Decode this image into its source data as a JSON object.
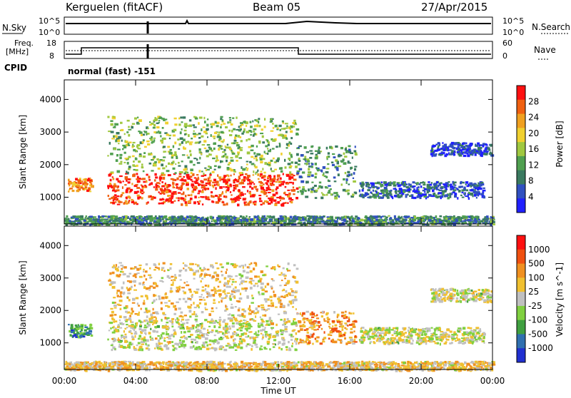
{
  "header": {
    "station": "Kerguelen (fitACF)",
    "beam": "Beam 05",
    "date": "27/Apr/2015"
  },
  "top_panels": {
    "nsky_label": "N.Sky",
    "nsky_ticks": [
      "10^5",
      "10^0"
    ],
    "nsearch_label": "N.Search",
    "nsearch_ticks": [
      "10^5",
      "10^0"
    ],
    "freq_label_1": "Freq.",
    "freq_label_2": "[MHz]",
    "freq_ticks": [
      "18",
      "8"
    ],
    "nave_label": "Nave",
    "nave_ticks": [
      "60",
      "0"
    ],
    "cpid_label": "CPID",
    "cpid_value": "normal (fast) -151"
  },
  "chart_data": [
    {
      "type": "heatmap",
      "name": "power",
      "xlabel": "",
      "ylabel": "Slant Range [km]",
      "x_ticks": [
        "00:00",
        "04:00",
        "08:00",
        "12:00",
        "16:00",
        "20:00",
        "00:00"
      ],
      "x_range_hours": [
        0,
        24
      ],
      "y_ticks": [
        1000,
        2000,
        3000,
        4000
      ],
      "ylim": [
        180,
        4600
      ],
      "colorbar_label": "Power [dB]",
      "colorbar_ticks": [
        "28",
        "24",
        "20",
        "16",
        "12",
        "8",
        "4"
      ],
      "colorbar_colors": [
        "#2020ff",
        "#3050c0",
        "#3a7a60",
        "#50a050",
        "#a0c840",
        "#f0d030",
        "#f0a020",
        "#f06010",
        "#ff1010"
      ],
      "regions": [
        {
          "t0": 0.2,
          "t1": 1.5,
          "r0": 1200,
          "r1": 1600,
          "level": 0.75
        },
        {
          "t0": 2.4,
          "t1": 13.0,
          "r0": 800,
          "r1": 1750,
          "level": 0.9
        },
        {
          "t0": 2.4,
          "t1": 13.0,
          "r0": 1750,
          "r1": 3500,
          "level": 0.45
        },
        {
          "t0": 13.0,
          "t1": 16.3,
          "r0": 1000,
          "r1": 2600,
          "level": 0.35
        },
        {
          "t0": 16.5,
          "t1": 23.5,
          "r0": 1000,
          "r1": 1500,
          "level": 0.2
        },
        {
          "t0": 20.5,
          "t1": 23.9,
          "r0": 2300,
          "r1": 2700,
          "level": 0.15
        },
        {
          "t0": 0,
          "t1": 24,
          "r0": 180,
          "r1": 450,
          "level": 0.3
        }
      ]
    },
    {
      "type": "heatmap",
      "name": "velocity",
      "xlabel": "Time UT",
      "ylabel": "Slant Range [km]",
      "x_ticks": [
        "00:00",
        "04:00",
        "08:00",
        "12:00",
        "16:00",
        "20:00",
        "00:00"
      ],
      "x_range_hours": [
        0,
        24
      ],
      "y_ticks": [
        1000,
        2000,
        3000,
        4000
      ],
      "ylim": [
        180,
        4600
      ],
      "colorbar_label": "Velocity [m s^-1]",
      "colorbar_ticks": [
        "1000",
        "500",
        "100",
        "25",
        "-25",
        "-100",
        "-500",
        "-1000"
      ],
      "colorbar_colors": [
        "#2030d0",
        "#3070b0",
        "#40a040",
        "#80d040",
        "#c0c0c0",
        "#f0c030",
        "#f09020",
        "#f05010",
        "#ff1010"
      ],
      "regions": [
        {
          "t0": 0.2,
          "t1": 1.5,
          "r0": 1200,
          "r1": 1600,
          "level": 0.25
        },
        {
          "t0": 2.4,
          "t1": 13.0,
          "r0": 800,
          "r1": 1750,
          "level": 0.5
        },
        {
          "t0": 2.4,
          "t1": 13.0,
          "r0": 1750,
          "r1": 3500,
          "level": 0.6
        },
        {
          "t0": 13.0,
          "t1": 16.3,
          "r0": 1000,
          "r1": 2000,
          "level": 0.7
        },
        {
          "t0": 16.5,
          "t1": 23.5,
          "r0": 1000,
          "r1": 1500,
          "level": 0.5
        },
        {
          "t0": 20.5,
          "t1": 23.9,
          "r0": 2300,
          "r1": 2700,
          "level": 0.5
        },
        {
          "t0": 0,
          "t1": 24,
          "r0": 180,
          "r1": 450,
          "level": 0.6
        }
      ]
    }
  ]
}
